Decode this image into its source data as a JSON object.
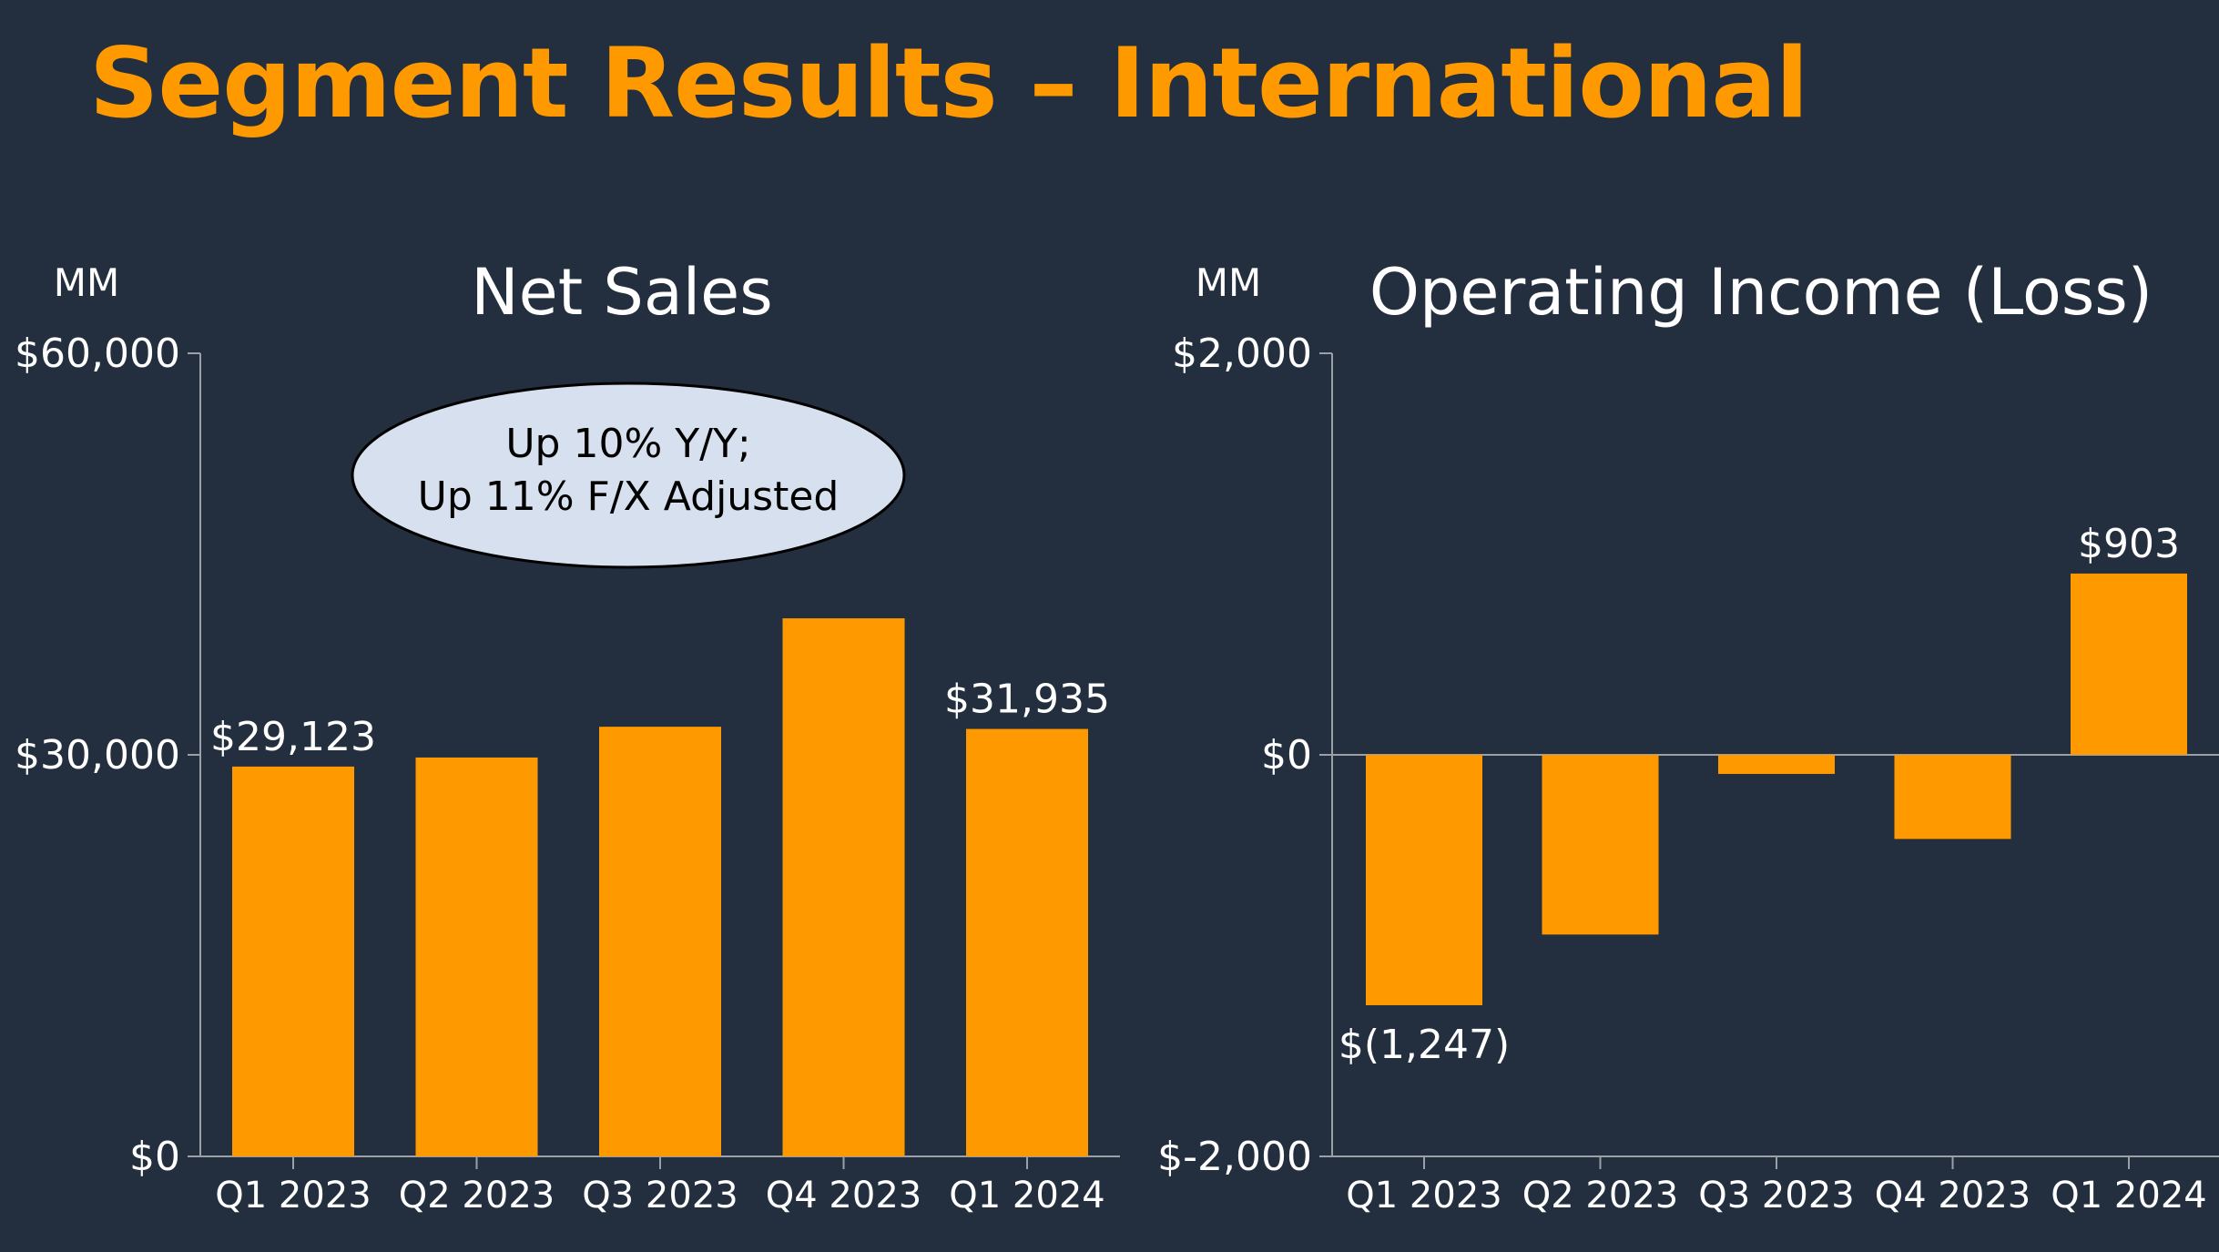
{
  "title": "Segment Results – International",
  "colors": {
    "background": "#232f3e",
    "accent": "#ff9900",
    "bar": "#ff9900",
    "text": "#ffffff",
    "axis": "#9aa0a6",
    "callout_fill": "#d6e0ef"
  },
  "chart_data": [
    {
      "type": "bar",
      "title": "Net Sales",
      "unit": "MM",
      "categories": [
        "Q1 2023",
        "Q2 2023",
        "Q3 2023",
        "Q4 2023",
        "Q1 2024"
      ],
      "values": [
        29123,
        29800,
        32100,
        40200,
        31935
      ],
      "data_labels": [
        "$29,123",
        "",
        "",
        "",
        "$31,935"
      ],
      "ylim": [
        0,
        60000
      ],
      "yticks": [
        {
          "value": 0,
          "label": "$0"
        },
        {
          "value": 30000,
          "label": "$30,000"
        },
        {
          "value": 60000,
          "label": "$60,000"
        }
      ],
      "callout": [
        "Up 10% Y/Y;",
        "Up 11% F/X Adjusted"
      ],
      "grid": false,
      "legend": "none"
    },
    {
      "type": "bar",
      "title": "Operating Income (Loss)",
      "unit": "MM",
      "categories": [
        "Q1 2023",
        "Q2 2023",
        "Q3 2023",
        "Q4 2023",
        "Q1 2024"
      ],
      "values": [
        -1247,
        -895,
        -95,
        -419,
        903
      ],
      "data_labels": [
        "$(1,247)",
        "",
        "",
        "",
        "$903"
      ],
      "ylim": [
        -2000,
        2000
      ],
      "yticks": [
        {
          "value": -2000,
          "label": "$-2,000"
        },
        {
          "value": 0,
          "label": "$0"
        },
        {
          "value": 2000,
          "label": "$2,000"
        }
      ],
      "grid": false,
      "legend": "none"
    }
  ]
}
